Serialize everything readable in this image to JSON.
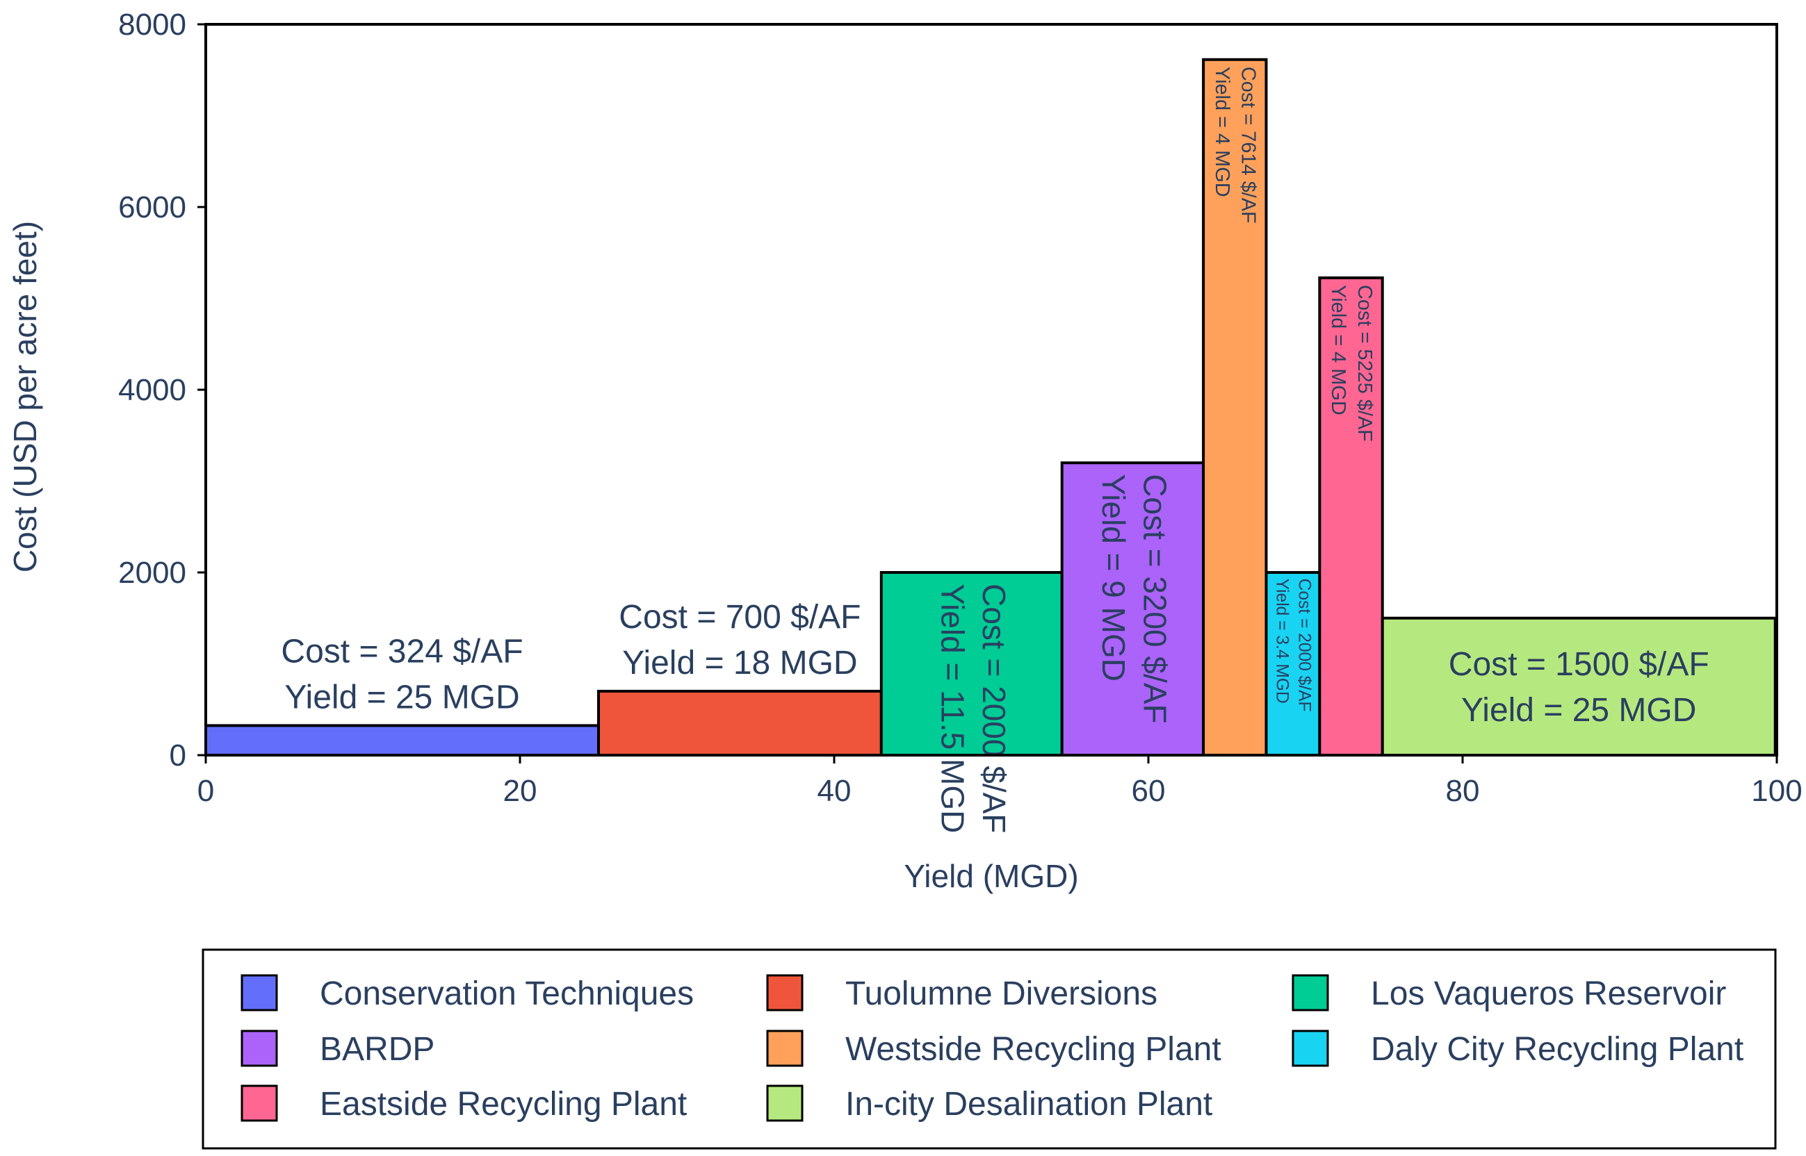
{
  "chart_data": {
    "type": "bar",
    "subtype": "variable-width",
    "xlabel": "Yield (MGD)",
    "ylabel": "Cost (USD per acre feet)",
    "xlim": [
      0,
      100
    ],
    "ylim": [
      0,
      8000
    ],
    "xticks": [
      0,
      20,
      40,
      60,
      80,
      100
    ],
    "yticks": [
      0,
      2000,
      4000,
      6000,
      8000
    ],
    "grid": false,
    "legend_position": "bottom",
    "series": [
      {
        "name": "Conservation Techniques",
        "x_start": 0,
        "width": 25,
        "cost": 324,
        "color": "#636efa",
        "line1": "Cost = 324 $/AF",
        "line2": "Yield = 25 MGD",
        "label_mode": "above"
      },
      {
        "name": "Tuolumne Diversions",
        "x_start": 25,
        "width": 18,
        "cost": 700,
        "color": "#ef553b",
        "line1": "Cost = 700 $/AF",
        "line2": "Yield = 18 MGD",
        "label_mode": "above"
      },
      {
        "name": "Los Vaqueros Reservoir",
        "x_start": 43,
        "width": 11.5,
        "cost": 2000,
        "color": "#00cc96",
        "line1": "Cost = 2000 $/AF",
        "line2": "Yield = 11.5 MGD",
        "label_mode": "rotated"
      },
      {
        "name": "BARDP",
        "x_start": 54.5,
        "width": 9,
        "cost": 3200,
        "color": "#ab63fa",
        "line1": "Cost = 3200 $/AF",
        "line2": "Yield = 9 MGD",
        "label_mode": "rotated"
      },
      {
        "name": "Westside Recycling Plant",
        "x_start": 63.5,
        "width": 4,
        "cost": 7614,
        "color": "#ffa15a",
        "line1": "Cost = 7614 $/AF",
        "line2": "Yield = 4 MGD",
        "label_mode": "rotated"
      },
      {
        "name": "Daly City Recycling Plant",
        "x_start": 67.5,
        "width": 3.4,
        "cost": 2000,
        "color": "#19d3f3",
        "line1": "Cost = 2000 $/AF",
        "line2": "Yield = 3.4 MGD",
        "label_mode": "rotated"
      },
      {
        "name": "Eastside Recycling Plant",
        "x_start": 70.9,
        "width": 4,
        "cost": 5225,
        "color": "#ff6692",
        "line1": "Cost = 5225 $/AF",
        "line2": "Yield = 4 MGD",
        "label_mode": "rotated"
      },
      {
        "name": "In-city Desalination Plant",
        "x_start": 74.9,
        "width": 25,
        "cost": 1500,
        "color": "#b6e880",
        "line1": "Cost = 1500 $/AF",
        "line2": "Yield = 25 MGD",
        "label_mode": "inside"
      }
    ],
    "legend_order": [
      0,
      1,
      2,
      3,
      4,
      5,
      6,
      7
    ]
  }
}
